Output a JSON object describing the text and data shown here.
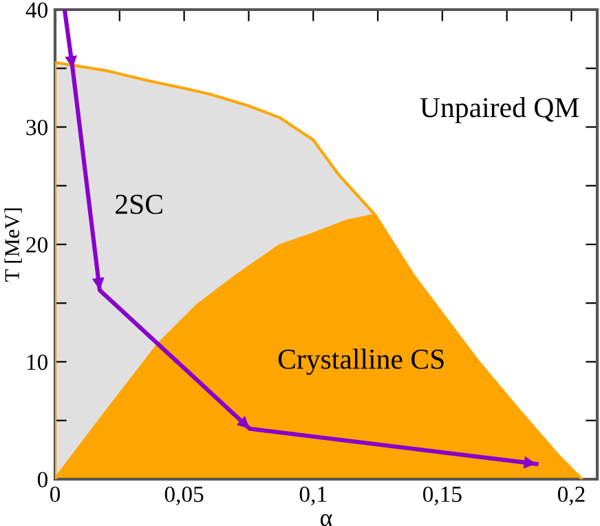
{
  "chart_data": {
    "type": "area",
    "xlabel": "α",
    "ylabel": "T [MeV]",
    "xlim": [
      0,
      0.21
    ],
    "ylim": [
      0,
      40
    ],
    "xticks": [
      {
        "value": 0,
        "label": "0"
      },
      {
        "value": 0.025,
        "label": null
      },
      {
        "value": 0.05,
        "label": "0,05"
      },
      {
        "value": 0.075,
        "label": null
      },
      {
        "value": 0.1,
        "label": "0,1"
      },
      {
        "value": 0.125,
        "label": null
      },
      {
        "value": 0.15,
        "label": "0,15"
      },
      {
        "value": 0.175,
        "label": null
      },
      {
        "value": 0.2,
        "label": "0,2"
      }
    ],
    "yticks": [
      0,
      {
        "value": 5,
        "label": null
      },
      10,
      {
        "value": 15,
        "label": null
      },
      20,
      {
        "value": 25,
        "label": null
      },
      30,
      {
        "value": 35,
        "label": null
      },
      40
    ],
    "grid": false,
    "legend": false,
    "marker": "none",
    "line_style": "solid",
    "series": [
      {
        "color": "#e0e0e0",
        "x": [
          0,
          0.02,
          0.035,
          0.05,
          0.06,
          0.075,
          0.087,
          0.1,
          0.11,
          0.124
        ],
        "values": [
          35.5,
          34.8,
          34.0,
          33.3,
          32.8,
          31.8,
          30.8,
          28.9,
          25.9,
          22.5
        ]
      },
      {
        "color": "#ffa500",
        "x": [
          0,
          0.02,
          0.04,
          0.055,
          0.07,
          0.087,
          0.1,
          0.113,
          0.124,
          0.139,
          0.152,
          0.164,
          0.18,
          0.195,
          0.204
        ],
        "values": [
          0,
          5.8,
          11.5,
          14.8,
          17.3,
          19.9,
          20.9,
          22.0,
          22.5,
          17.3,
          13.5,
          10.0,
          5.8,
          2.0,
          0
        ]
      },
      {
        "type": "line",
        "color": "#8800cc",
        "x": [
          0.0037,
          0.0068,
          0.0173,
          0.0754,
          0.1864
        ],
        "values": [
          40,
          35,
          16.1,
          4.3,
          1.3
        ]
      }
    ],
    "annotations": [
      "Unpaired QM",
      "2SC",
      "Crystalline CS"
    ]
  }
}
